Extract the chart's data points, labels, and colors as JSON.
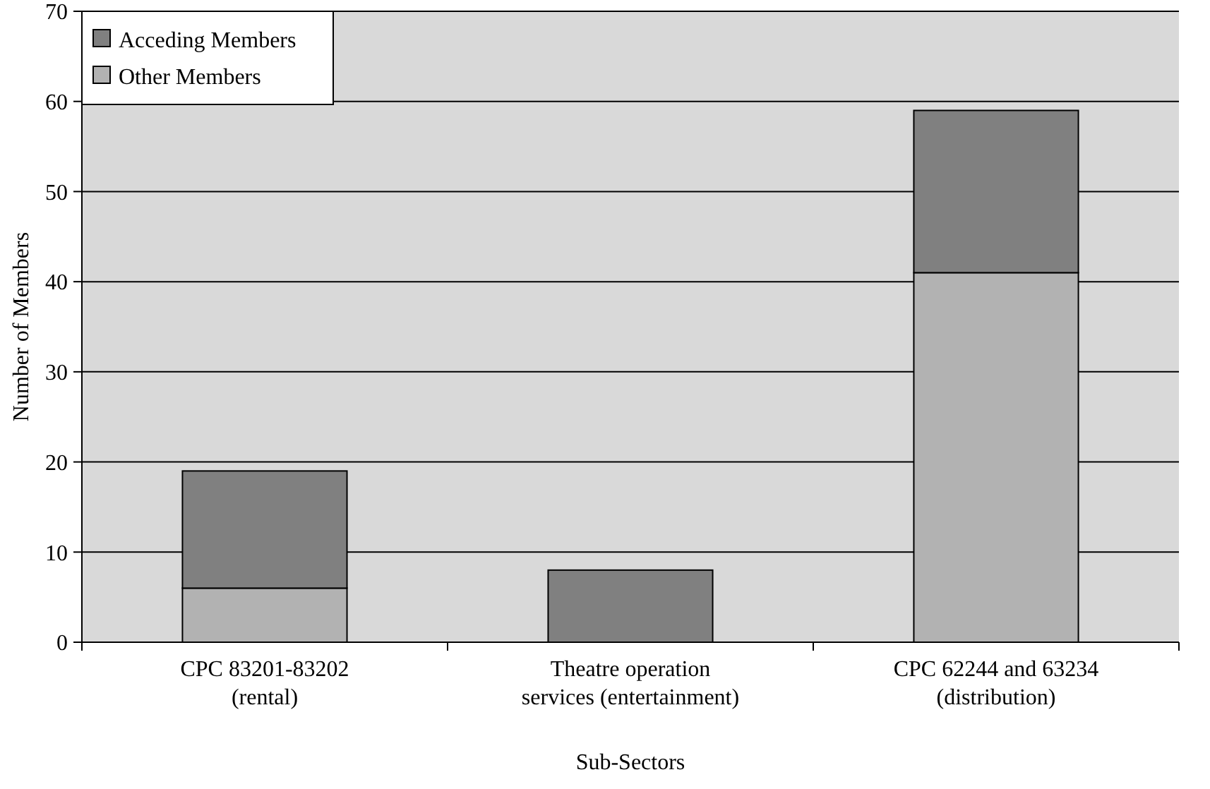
{
  "chart_data": {
    "type": "bar",
    "stacked": true,
    "xlabel": "Sub-Sectors",
    "ylabel": "Number of Members",
    "categories": [
      "CPC 83201-83202\n(rental)",
      "Theatre operation\nservices (entertainment)",
      "CPC 62244 and 63234\n(distribution)"
    ],
    "series": [
      {
        "name": "Other Members",
        "color": "#b2b2b2",
        "values": [
          6,
          null,
          41
        ]
      },
      {
        "name": "Acceding Members",
        "color": "#808080",
        "values": [
          13,
          8,
          18
        ]
      }
    ],
    "ylim": [
      0,
      70
    ],
    "yticks": [
      0,
      10,
      20,
      30,
      40,
      50,
      60,
      70
    ],
    "grid": "y",
    "legend": "top left"
  }
}
